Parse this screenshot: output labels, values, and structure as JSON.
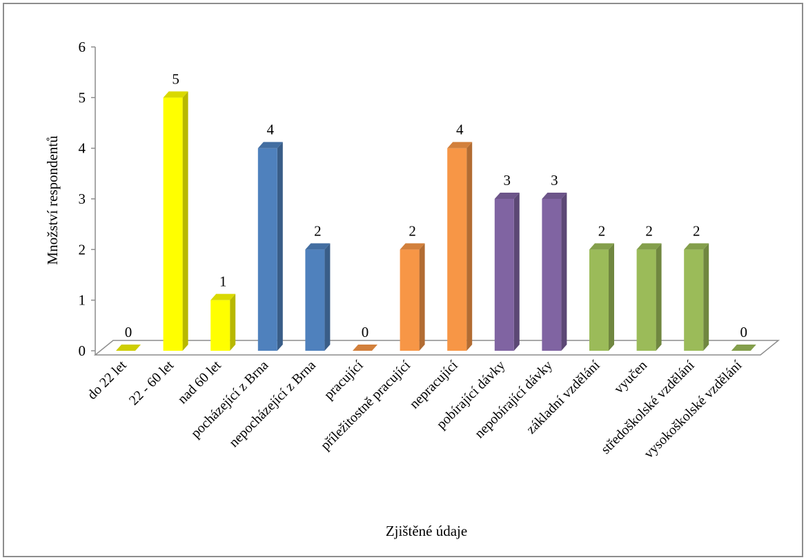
{
  "chart_data": {
    "type": "bar",
    "title": "",
    "xlabel": "Zjištěné údaje",
    "ylabel": "Množství respondentů",
    "ylim": [
      0,
      6
    ],
    "y_ticks": [
      "0",
      "1",
      "2",
      "3",
      "4",
      "5",
      "6"
    ],
    "categories": [
      "do 22 let",
      "22 - 60 let",
      "nad 60 let",
      "pocházející z Brna",
      "nepocházející z Brna",
      "pracující",
      "příležitostně pracující",
      "nepracující",
      "pobírající dávky",
      "nepobírající dávky",
      "základní vzdělání",
      "vyučen",
      "středoškolské vzdělání",
      "vysokoškolské vzdělání"
    ],
    "values": [
      0,
      5,
      1,
      4,
      2,
      0,
      2,
      4,
      3,
      3,
      2,
      2,
      2,
      0
    ],
    "value_labels": [
      "0",
      "5",
      "1",
      "4",
      "2",
      "0",
      "2",
      "4",
      "3",
      "3",
      "2",
      "2",
      "2",
      "0"
    ],
    "bar_colors": [
      "#f2f200",
      "#ffff00",
      "#ffff00",
      "#4f81bd",
      "#4f81bd",
      "#f79646",
      "#f79646",
      "#f79646",
      "#8064a2",
      "#8064a2",
      "#9bbb59",
      "#9bbb59",
      "#9bbb59",
      "#9bbb59"
    ],
    "grid": false,
    "legend": "none"
  }
}
